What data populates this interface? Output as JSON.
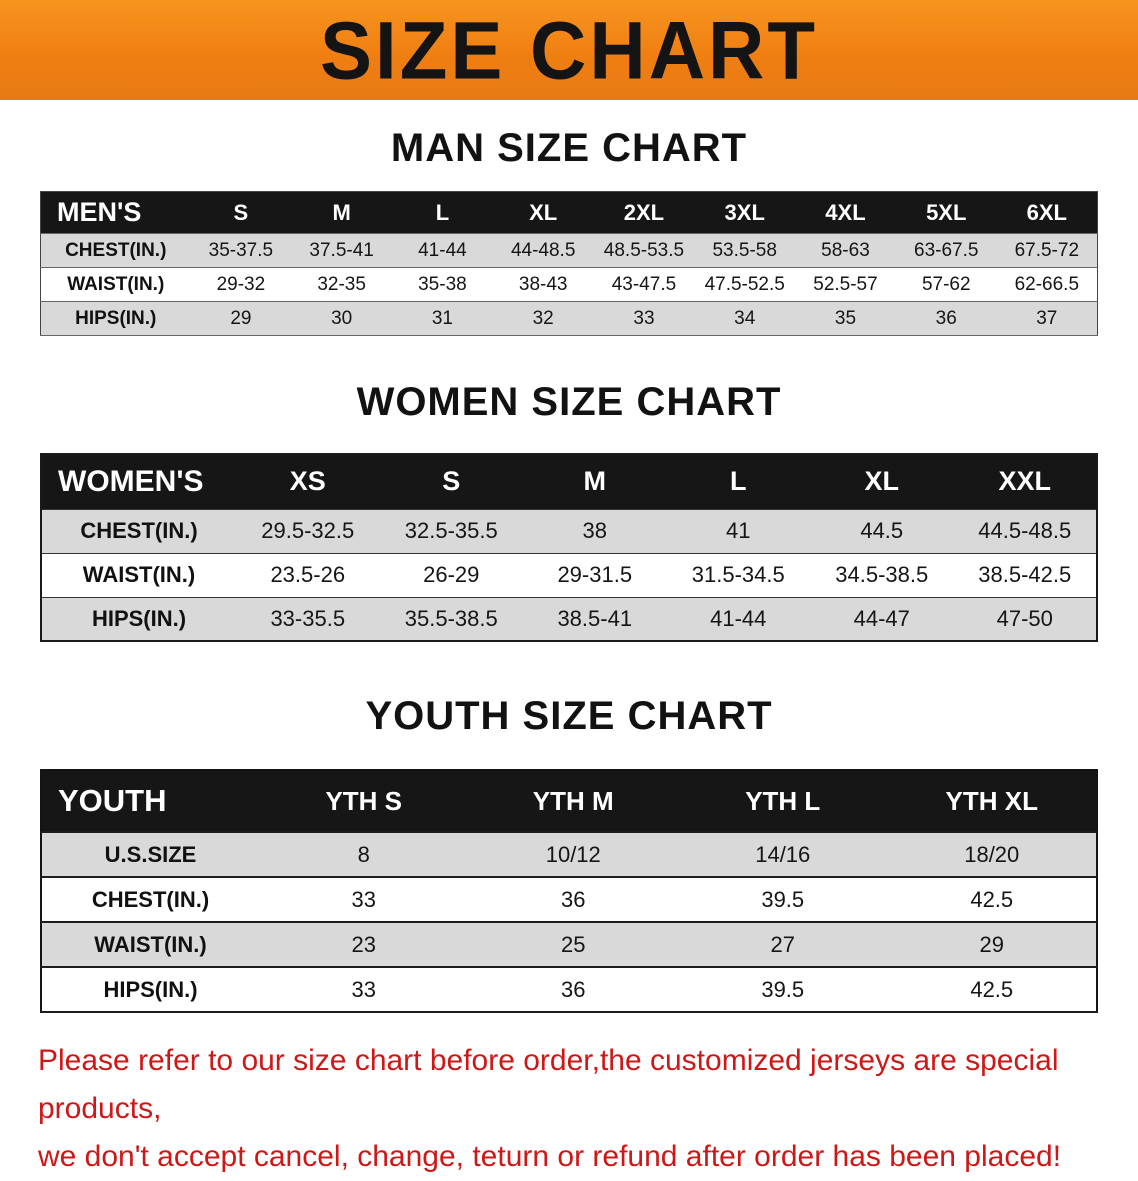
{
  "banner": {
    "title": "SIZE CHART",
    "bg_color": "#f0840f",
    "text_color": "#141414"
  },
  "colors": {
    "table_header_bg": "#161616",
    "table_header_text": "#ffffff",
    "stripe_row": "#d9d9d9",
    "disclaimer_text": "#ce1717"
  },
  "sections": [
    {
      "heading": "MAN SIZE CHART",
      "table": {
        "header": [
          "MEN'S",
          "S",
          "M",
          "L",
          "XL",
          "2XL",
          "3XL",
          "4XL",
          "5XL",
          "6XL"
        ],
        "rows": [
          [
            "CHEST(IN.)",
            "35-37.5",
            "37.5-41",
            "41-44",
            "44-48.5",
            "48.5-53.5",
            "53.5-58",
            "58-63",
            "63-67.5",
            "67.5-72"
          ],
          [
            "WAIST(IN.)",
            "29-32",
            "32-35",
            "35-38",
            "38-43",
            "43-47.5",
            "47.5-52.5",
            "52.5-57",
            "57-62",
            "62-66.5"
          ],
          [
            "HIPS(IN.)",
            "29",
            "30",
            "31",
            "32",
            "33",
            "34",
            "35",
            "36",
            "37"
          ]
        ]
      }
    },
    {
      "heading": "WOMEN SIZE CHART",
      "table": {
        "header": [
          "WOMEN'S",
          "XS",
          "S",
          "M",
          "L",
          "XL",
          "XXL"
        ],
        "rows": [
          [
            "CHEST(IN.)",
            "29.5-32.5",
            "32.5-35.5",
            "38",
            "41",
            "44.5",
            "44.5-48.5"
          ],
          [
            "WAIST(IN.)",
            "23.5-26",
            "26-29",
            "29-31.5",
            "31.5-34.5",
            "34.5-38.5",
            "38.5-42.5"
          ],
          [
            "HIPS(IN.)",
            "33-35.5",
            "35.5-38.5",
            "38.5-41",
            "41-44",
            "44-47",
            "47-50"
          ]
        ]
      }
    },
    {
      "heading": "YOUTH SIZE CHART",
      "table": {
        "header": [
          "YOUTH",
          "YTH S",
          "YTH M",
          "YTH L",
          "YTH XL"
        ],
        "rows": [
          [
            "U.S.SIZE",
            "8",
            "10/12",
            "14/16",
            "18/20"
          ],
          [
            "CHEST(IN.)",
            "33",
            "36",
            "39.5",
            "42.5"
          ],
          [
            "WAIST(IN.)",
            "23",
            "25",
            "27",
            "29"
          ],
          [
            "HIPS(IN.)",
            "33",
            "36",
            "39.5",
            "42.5"
          ]
        ]
      }
    }
  ],
  "disclaimer": {
    "line1": "Please refer to our size chart before order,the customized jerseys are special products,",
    "line2": "we don't accept cancel, change, teturn or refund after order has been placed!"
  }
}
